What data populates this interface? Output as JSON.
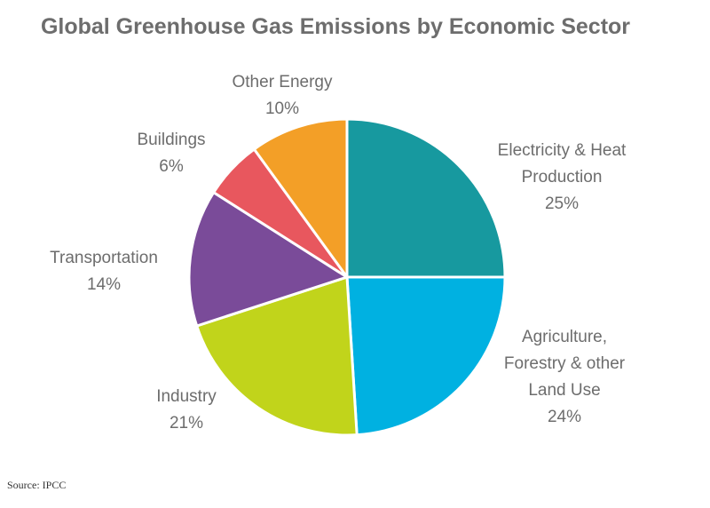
{
  "chart_data": {
    "type": "pie",
    "title": "Global Greenhouse Gas Emissions by Economic Sector",
    "categories": [
      "Electricity & Heat Production",
      "Agriculture, Forestry & other Land Use",
      "Industry",
      "Transportation",
      "Buildings",
      "Other Energy"
    ],
    "values": [
      25,
      24,
      21,
      14,
      6,
      10
    ],
    "value_labels": [
      "25%",
      "24%",
      "21%",
      "14%",
      "6%",
      "10%"
    ],
    "colors": [
      "#17999f",
      "#00b1e1",
      "#c1d41b",
      "#7a4b99",
      "#e8575e",
      "#f39f27"
    ],
    "source": "Source: IPCC"
  }
}
